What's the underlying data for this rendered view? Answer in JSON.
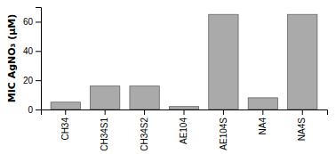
{
  "chart_data": {
    "type": "bar",
    "ylabel": "MIC AgNO₃ (μM)",
    "categories": [
      "CH34",
      "CH34S1",
      "CH34S2",
      "AE104",
      "AE104S",
      "NA4",
      "NA4S"
    ],
    "values": [
      5,
      16,
      16,
      2,
      65,
      8,
      65
    ],
    "color": "#aaaaaa",
    "ylim": [
      0,
      70
    ],
    "yticks": [
      0,
      20,
      40,
      60
    ]
  }
}
